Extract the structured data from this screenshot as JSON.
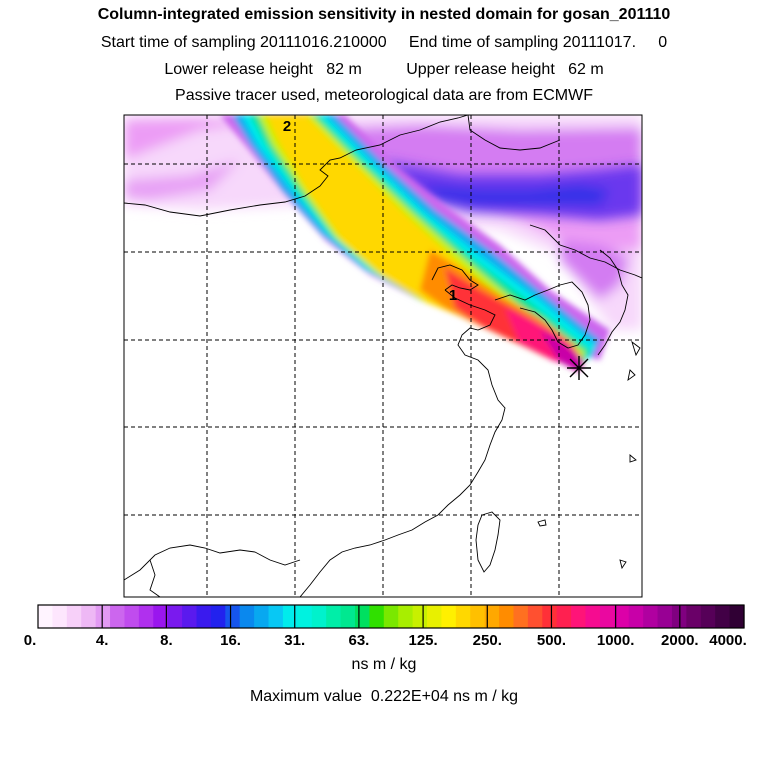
{
  "titles": {
    "line1": "Column-integrated emission sensitivity in nested domain for gosan_201110",
    "line2": "Start time of sampling 20111016.210000     End time of sampling 20111017.     0",
    "line3": "Lower release height   82 m          Upper release height   62 m",
    "line4": "Passive tracer used, meteorological data are from ECMWF"
  },
  "map": {
    "plume_labels": [
      "2",
      "1"
    ],
    "receptor_marker": "star-marker",
    "gridlines": "dashed"
  },
  "colorbar": {
    "ticks": [
      "0.",
      "4.",
      "8.",
      "16.",
      "31.",
      "63.",
      "125.",
      "250.",
      "500.",
      "1000.",
      "2000.",
      "4000."
    ],
    "colors": [
      "#fff4ff",
      "#fde6fd",
      "#f7d0f9",
      "#eeb8f5",
      "#e29af3",
      "#cc66ee",
      "#c04cee",
      "#b030ee",
      "#9a16ee",
      "#7a1aee",
      "#5a1aee",
      "#3a1aee",
      "#2222ee",
      "#1655ee",
      "#0a88ee",
      "#08a8f0",
      "#08c8f4",
      "#00ecec",
      "#00f2e0",
      "#00f2cc",
      "#00eea8",
      "#00e890",
      "#00e060",
      "#30e000",
      "#7ae800",
      "#a8ee00",
      "#c8f000",
      "#e8f000",
      "#fff000",
      "#ffd800",
      "#ffc000",
      "#ffa800",
      "#ff8c00",
      "#ff7020",
      "#ff5030",
      "#ff3038",
      "#ff2050",
      "#ff1478",
      "#f60c90",
      "#ea08a0",
      "#dc00a8",
      "#c800a8",
      "#b000a0",
      "#980094",
      "#800080",
      "#6a0068",
      "#560058",
      "#420046",
      "#300034"
    ],
    "units": "ns m / kg",
    "max_value_text": "Maximum value  0.222E+04 ns m / kg"
  }
}
